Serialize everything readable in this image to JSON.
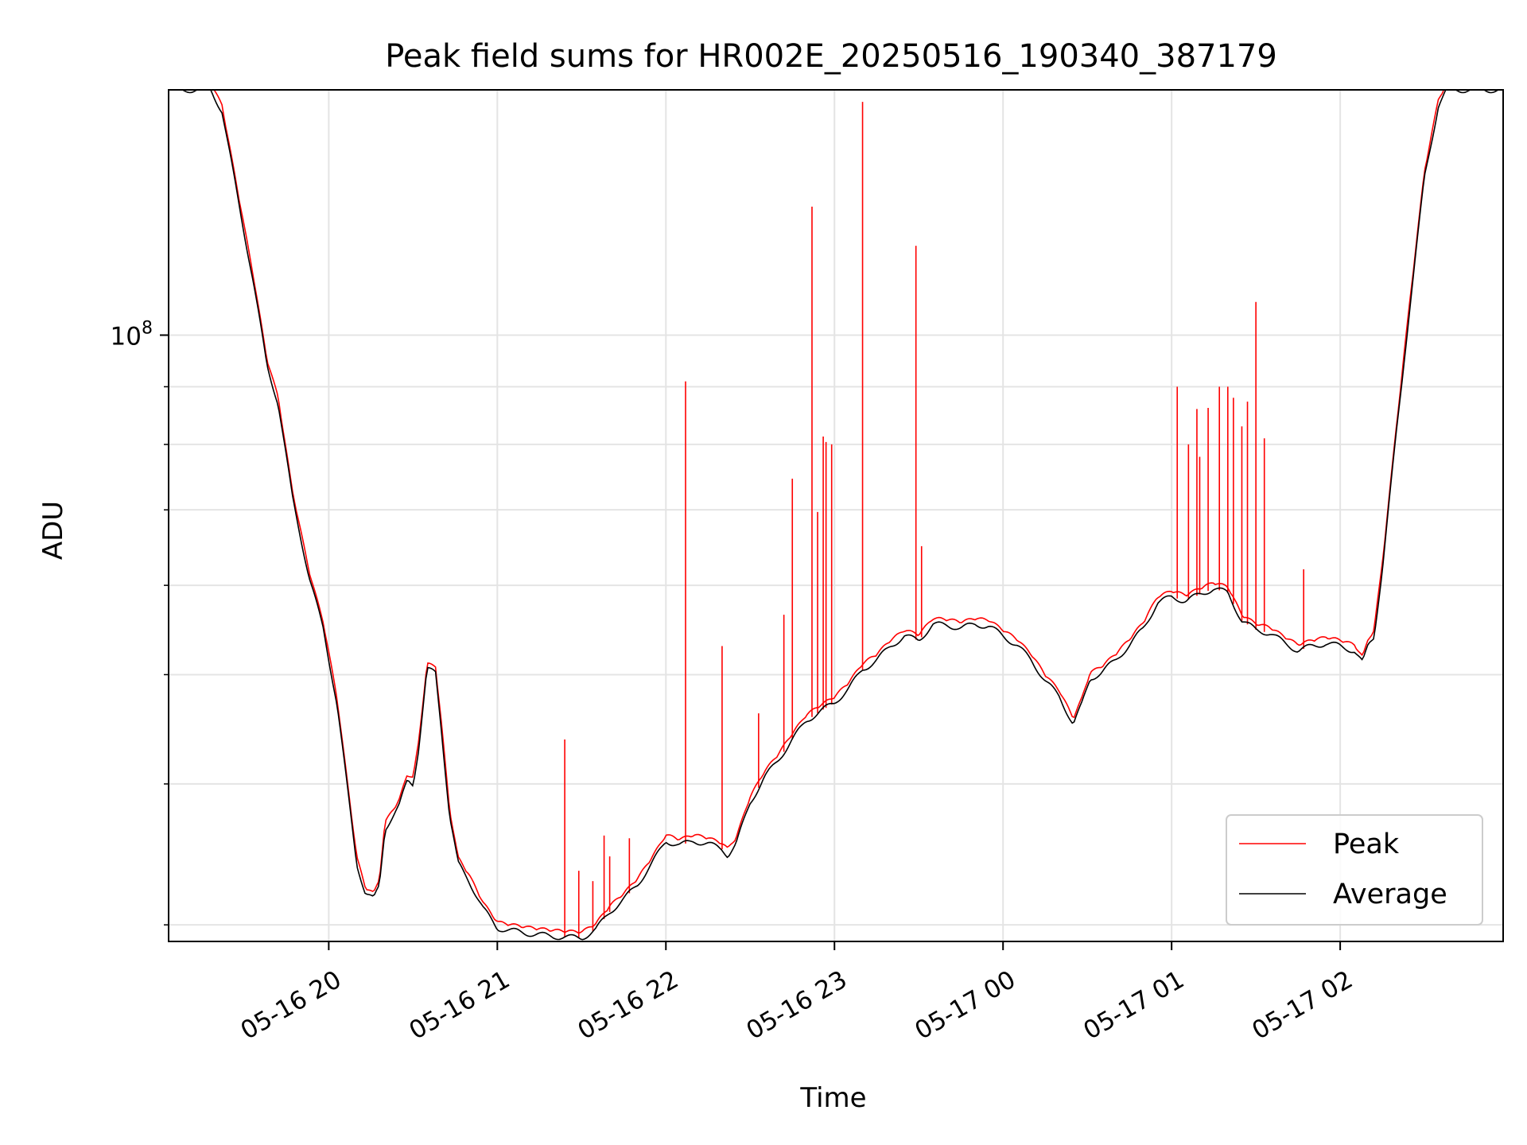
{
  "chart_data": {
    "type": "line",
    "title": "Peak field sums for HR002E_20250516_190340_387179",
    "xlabel": "Time",
    "ylabel": "ADU",
    "yscale": "log",
    "y_tick_labels": [
      {
        "base": "10",
        "exp": "8",
        "value": 100000000
      }
    ],
    "y_minor_ticks": [
      30000000,
      40000000,
      50000000,
      60000000,
      70000000,
      80000000,
      90000000,
      200000000
    ],
    "ylim": [
      29000000,
      165000000
    ],
    "xlim": [
      "2025-05-16 19:03",
      "2025-05-17 02:58"
    ],
    "x_ticks": [
      {
        "t": "2025-05-16 20:00",
        "label": "05-16 20"
      },
      {
        "t": "2025-05-16 21:00",
        "label": "05-16 21"
      },
      {
        "t": "2025-05-16 22:00",
        "label": "05-16 22"
      },
      {
        "t": "2025-05-16 23:00",
        "label": "05-16 23"
      },
      {
        "t": "2025-05-17 00:00",
        "label": "05-17 00"
      },
      {
        "t": "2025-05-17 01:00",
        "label": "05-17 01"
      },
      {
        "t": "2025-05-17 02:00",
        "label": "05-17 02"
      }
    ],
    "grid": true,
    "legend_position": "lower-right",
    "series": [
      {
        "name": "Average",
        "color": "#000000",
        "points": [
          [
            "2025-05-16 19:03",
            165000000
          ],
          [
            "2025-05-16 19:18",
            165000000
          ],
          [
            "2025-05-16 19:22",
            158000000
          ],
          [
            "2025-05-16 19:27",
            135000000
          ],
          [
            "2025-05-16 19:33",
            112000000
          ],
          [
            "2025-05-16 19:38",
            94000000
          ],
          [
            "2025-05-16 19:42",
            87000000
          ],
          [
            "2025-05-16 19:47",
            72000000
          ],
          [
            "2025-05-16 19:53",
            61000000
          ],
          [
            "2025-05-16 19:58",
            55000000
          ],
          [
            "2025-05-16 20:03",
            47000000
          ],
          [
            "2025-05-16 20:07",
            39000000
          ],
          [
            "2025-05-16 20:10",
            34000000
          ],
          [
            "2025-05-16 20:13",
            32000000
          ],
          [
            "2025-05-16 20:16",
            31600000
          ],
          [
            "2025-05-16 20:18",
            32500000
          ],
          [
            "2025-05-16 20:20",
            36500000
          ],
          [
            "2025-05-16 20:22",
            37200000
          ],
          [
            "2025-05-16 20:25",
            38200000
          ],
          [
            "2025-05-16 20:28",
            40300000
          ],
          [
            "2025-05-16 20:30",
            40000000
          ],
          [
            "2025-05-16 20:32",
            43000000
          ],
          [
            "2025-05-16 20:35",
            50500000
          ],
          [
            "2025-05-16 20:38",
            50200000
          ],
          [
            "2025-05-16 20:40",
            45000000
          ],
          [
            "2025-05-16 20:43",
            37500000
          ],
          [
            "2025-05-16 20:46",
            34000000
          ],
          [
            "2025-05-16 20:50",
            32800000
          ],
          [
            "2025-05-16 20:55",
            31000000
          ],
          [
            "2025-05-16 21:00",
            29800000
          ],
          [
            "2025-05-16 21:10",
            29500000
          ],
          [
            "2025-05-16 21:20",
            29300000
          ],
          [
            "2025-05-16 21:30",
            29200000
          ],
          [
            "2025-05-16 21:35",
            29700000
          ],
          [
            "2025-05-16 21:40",
            30800000
          ],
          [
            "2025-05-16 21:45",
            31600000
          ],
          [
            "2025-05-16 21:50",
            32600000
          ],
          [
            "2025-05-16 21:55",
            34000000
          ],
          [
            "2025-05-16 22:00",
            35600000
          ],
          [
            "2025-05-16 22:05",
            35300000
          ],
          [
            "2025-05-16 22:10",
            35600000
          ],
          [
            "2025-05-16 22:15",
            35400000
          ],
          [
            "2025-05-16 22:20",
            35000000
          ],
          [
            "2025-05-16 22:22",
            34600000
          ],
          [
            "2025-05-16 22:25",
            35400000
          ],
          [
            "2025-05-16 22:30",
            38500000
          ],
          [
            "2025-05-16 22:35",
            40500000
          ],
          [
            "2025-05-16 22:40",
            42000000
          ],
          [
            "2025-05-16 22:45",
            43800000
          ],
          [
            "2025-05-16 22:50",
            45500000
          ],
          [
            "2025-05-16 22:55",
            46400000
          ],
          [
            "2025-05-16 23:00",
            47200000
          ],
          [
            "2025-05-16 23:05",
            48600000
          ],
          [
            "2025-05-16 23:10",
            50500000
          ],
          [
            "2025-05-16 23:15",
            51500000
          ],
          [
            "2025-05-16 23:20",
            53000000
          ],
          [
            "2025-05-16 23:25",
            54100000
          ],
          [
            "2025-05-16 23:30",
            53600000
          ],
          [
            "2025-05-16 23:35",
            55400000
          ],
          [
            "2025-05-16 23:40",
            55300000
          ],
          [
            "2025-05-16 23:45",
            55000000
          ],
          [
            "2025-05-16 23:50",
            55400000
          ],
          [
            "2025-05-16 23:55",
            55200000
          ],
          [
            "2025-05-17 00:00",
            54100000
          ],
          [
            "2025-05-17 00:05",
            53100000
          ],
          [
            "2025-05-17 00:10",
            51500000
          ],
          [
            "2025-05-17 00:15",
            49400000
          ],
          [
            "2025-05-17 00:20",
            47800000
          ],
          [
            "2025-05-17 00:25",
            45200000
          ],
          [
            "2025-05-17 00:28",
            47000000
          ],
          [
            "2025-05-17 00:31",
            49600000
          ],
          [
            "2025-05-17 00:35",
            50200000
          ],
          [
            "2025-05-17 00:40",
            51500000
          ],
          [
            "2025-05-17 00:45",
            53100000
          ],
          [
            "2025-05-17 00:50",
            55000000
          ],
          [
            "2025-05-17 00:55",
            57900000
          ],
          [
            "2025-05-17 01:00",
            58600000
          ],
          [
            "2025-05-17 01:05",
            58100000
          ],
          [
            "2025-05-17 01:10",
            58900000
          ],
          [
            "2025-05-17 01:15",
            59600000
          ],
          [
            "2025-05-17 01:20",
            59100000
          ],
          [
            "2025-05-17 01:25",
            55800000
          ],
          [
            "2025-05-17 01:30",
            54800000
          ],
          [
            "2025-05-17 01:35",
            54400000
          ],
          [
            "2025-05-17 01:40",
            53400000
          ],
          [
            "2025-05-17 01:45",
            52500000
          ],
          [
            "2025-05-17 01:50",
            53000000
          ],
          [
            "2025-05-17 01:55",
            53300000
          ],
          [
            "2025-05-17 02:00",
            53000000
          ],
          [
            "2025-05-17 02:05",
            52500000
          ],
          [
            "2025-05-17 02:08",
            51200000
          ],
          [
            "2025-05-17 02:10",
            53100000
          ],
          [
            "2025-05-17 02:12",
            54000000
          ],
          [
            "2025-05-17 02:15",
            62000000
          ],
          [
            "2025-05-17 02:20",
            82000000
          ],
          [
            "2025-05-17 02:25",
            107000000
          ],
          [
            "2025-05-17 02:30",
            138000000
          ],
          [
            "2025-05-17 02:35",
            160000000
          ],
          [
            "2025-05-17 02:38",
            165000000
          ],
          [
            "2025-05-17 02:58",
            165000000
          ]
        ]
      },
      {
        "name": "Peak",
        "color": "#ff0000",
        "spikes": [
          [
            "2025-05-16 21:24",
            43800000
          ],
          [
            "2025-05-16 21:29",
            33500000
          ],
          [
            "2025-05-16 21:34",
            32800000
          ],
          [
            "2025-05-16 21:38",
            36000000
          ],
          [
            "2025-05-16 21:40",
            34500000
          ],
          [
            "2025-05-16 21:47",
            35800000
          ],
          [
            "2025-05-16 22:07",
            91000000
          ],
          [
            "2025-05-16 22:20",
            53000000
          ],
          [
            "2025-05-16 22:33",
            46200000
          ],
          [
            "2025-05-16 22:42",
            56500000
          ],
          [
            "2025-05-16 22:45",
            74600000
          ],
          [
            "2025-05-16 22:52",
            130000000
          ],
          [
            "2025-05-16 22:54",
            69700000
          ],
          [
            "2025-05-16 22:56",
            81300000
          ],
          [
            "2025-05-16 22:57",
            80400000
          ],
          [
            "2025-05-16 22:59",
            80000000
          ],
          [
            "2025-05-16 23:10",
            161000000
          ],
          [
            "2025-05-16 23:29",
            120000000
          ],
          [
            "2025-05-16 23:31",
            65000000
          ],
          [
            "2025-05-17 01:02",
            90000000
          ],
          [
            "2025-05-17 01:06",
            80000000
          ],
          [
            "2025-05-17 01:09",
            86000000
          ],
          [
            "2025-05-17 01:10",
            78000000
          ],
          [
            "2025-05-17 01:13",
            86200000
          ],
          [
            "2025-05-17 01:17",
            90000000
          ],
          [
            "2025-05-17 01:20",
            90000000
          ],
          [
            "2025-05-17 01:22",
            88000000
          ],
          [
            "2025-05-17 01:25",
            83000000
          ],
          [
            "2025-05-17 01:27",
            87300000
          ],
          [
            "2025-05-17 01:30",
            107000000
          ],
          [
            "2025-05-17 01:33",
            81000000
          ],
          [
            "2025-05-17 01:47",
            62000000
          ]
        ]
      }
    ]
  },
  "legend": {
    "items": [
      {
        "label": "Peak",
        "color": "#ff0000"
      },
      {
        "label": "Average",
        "color": "#000000"
      }
    ]
  }
}
